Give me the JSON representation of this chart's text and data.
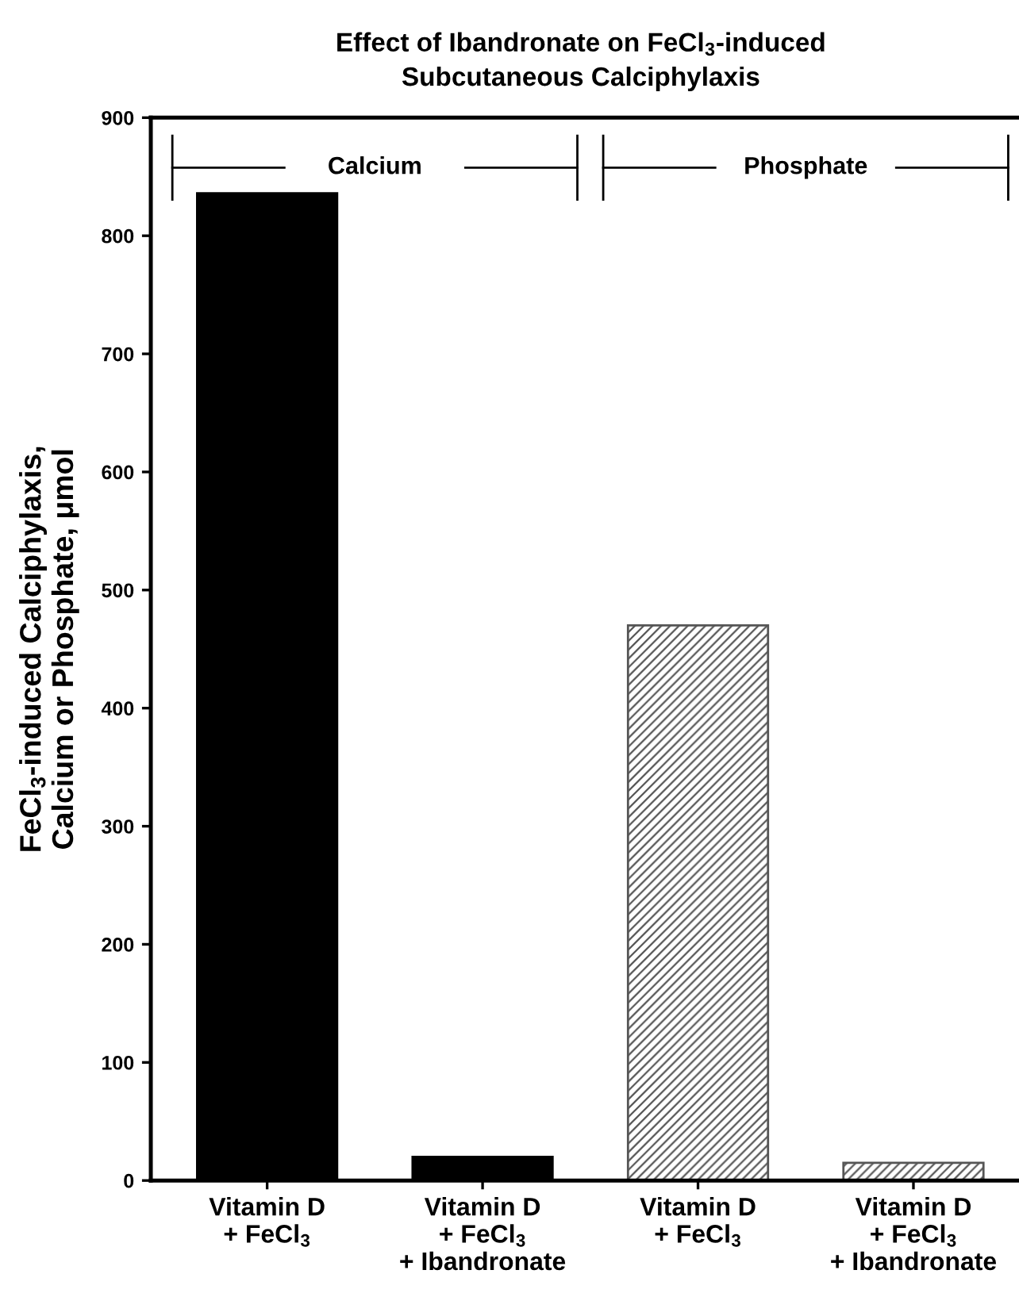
{
  "chart_data": {
    "type": "bar",
    "title": "Effect of Ibandronate on FeCl$_{3}$-induced\nSubcutaneous Calciphylaxis",
    "ylabel": "FeCl$_{3}$-induced Calciphylaxis,\nCalcium or Phosphate, μmol",
    "categories": [
      "Vitamin D\n+ FeCl$_{3}$",
      "Vitamin D\n+ FeCl$_{3}$\n+ Ibandronate",
      "Vitamin D\n+ FeCl$_{3}$",
      "Vitamin D\n+ FeCl$_{3}$\n+ Ibandronate"
    ],
    "values": [
      836,
      20,
      470,
      15
    ],
    "colors": [
      "#000000",
      "#000000",
      "#555555",
      "#555555"
    ],
    "annotations": [
      "Calcium",
      "Phosphate"
    ],
    "ylim": [
      0,
      900
    ],
    "yticks": [
      0,
      100,
      200,
      300,
      400,
      500,
      600,
      700,
      800,
      900
    ],
    "grid": false
  }
}
